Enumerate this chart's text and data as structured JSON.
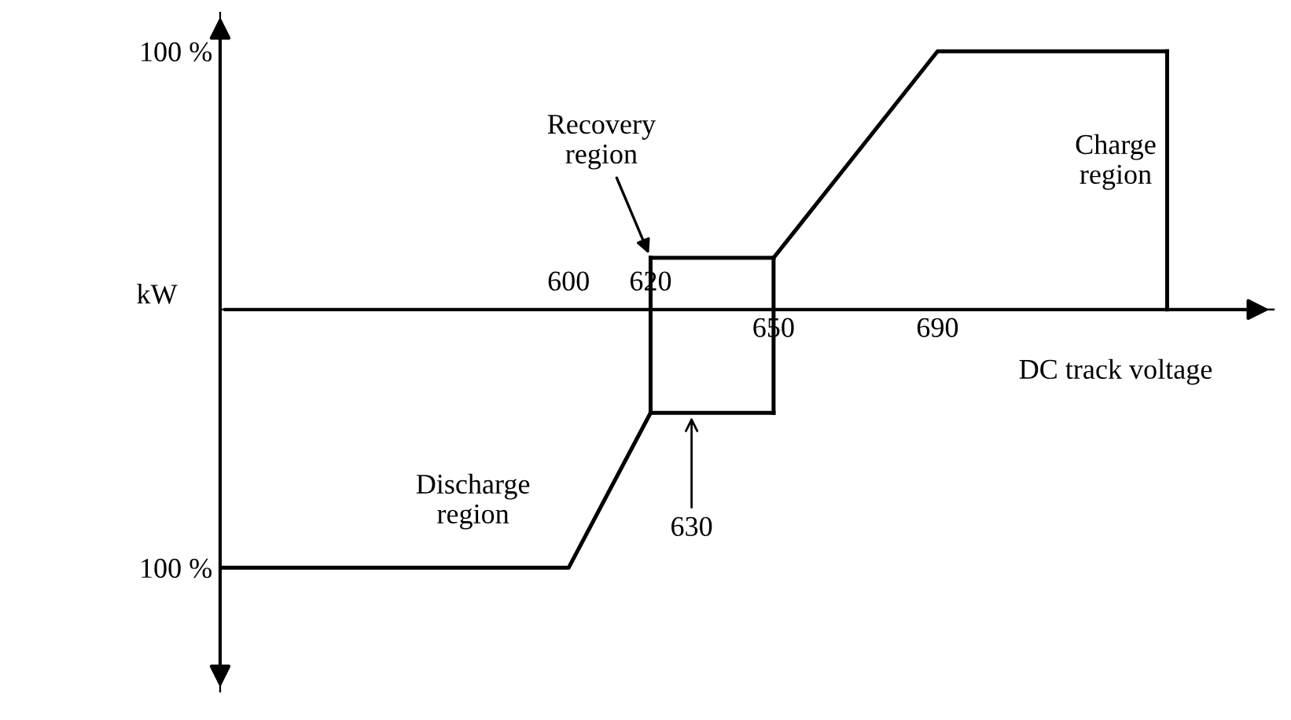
{
  "chart_data": {
    "type": "line",
    "xlabel": "DC track voltage",
    "ylabel": "kW",
    "xlim": [
      515,
      772
    ],
    "ylim": [
      -148,
      115
    ],
    "xticks": [
      650,
      690
    ],
    "x2lim": [
      515,
      772
    ],
    "x2ticks": [
      600,
      620
    ],
    "yticks": [
      {
        "value": 100,
        "label": "100 %"
      },
      {
        "value": -100,
        "label": "100 %"
      }
    ],
    "series": [
      {
        "color": "#000000",
        "x": [
          515,
          600,
          620
        ],
        "values": [
          -100,
          -100,
          -40
        ]
      },
      {
        "color": "#000000",
        "x": [
          620,
          650
        ],
        "values": [
          -40,
          -40
        ]
      },
      {
        "color": "#000000",
        "x": [
          620,
          650
        ],
        "values": [
          20,
          20
        ]
      },
      {
        "color": "#000000",
        "x": [
          620,
          620
        ],
        "values": [
          -40,
          20
        ]
      },
      {
        "color": "#000000",
        "x": [
          650,
          650
        ],
        "values": [
          -40,
          20
        ]
      },
      {
        "color": "#000000",
        "x": [
          650,
          690,
          746
        ],
        "values": [
          20,
          100,
          100
        ]
      },
      {
        "color": "#000000",
        "x": [
          746,
          746
        ],
        "values": [
          100,
          0
        ]
      }
    ],
    "annotations": [
      {
        "text": "Recovery\nregion",
        "x": 620,
        "y": 20
      },
      {
        "text": "630",
        "x": 630,
        "y": -40
      },
      "Charge\nregion",
      "Discharge\nregion"
    ],
    "grid": false,
    "marker": "none",
    "line_style": "solid"
  }
}
